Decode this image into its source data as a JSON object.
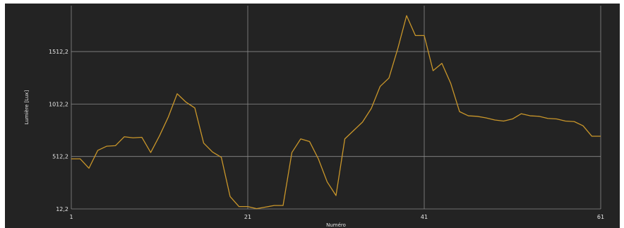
{
  "chart_data": {
    "type": "line",
    "title": "",
    "xlabel": "Numéro",
    "ylabel": "Lumière [Lux]",
    "x": [
      1,
      2,
      3,
      4,
      5,
      6,
      7,
      8,
      9,
      10,
      11,
      12,
      13,
      14,
      15,
      16,
      17,
      18,
      19,
      20,
      21,
      22,
      23,
      24,
      25,
      26,
      27,
      28,
      29,
      30,
      31,
      32,
      33,
      34,
      35,
      36,
      37,
      38,
      39,
      40,
      41,
      42,
      43,
      44,
      45,
      46,
      47,
      48,
      49,
      50,
      51,
      52,
      53,
      54,
      55,
      56,
      57,
      58,
      59,
      60,
      61
    ],
    "series": [
      {
        "values": [
          490,
          490,
          400,
          570,
          610,
          615,
          700,
          690,
          695,
          550,
          710,
          890,
          1110,
          1030,
          975,
          640,
          555,
          505,
          130,
          35,
          35,
          15,
          30,
          45,
          45,
          550,
          680,
          655,
          490,
          270,
          140,
          680,
          760,
          840,
          970,
          1180,
          1260,
          1540,
          1855,
          1665,
          1665,
          1330,
          1400,
          1210,
          940,
          900,
          895,
          880,
          860,
          850,
          870,
          920,
          900,
          895,
          875,
          870,
          850,
          845,
          805,
          705,
          705
        ]
      }
    ],
    "xticks": [
      1,
      21,
      41,
      61
    ],
    "xtick_labels": [
      "1",
      "21",
      "41",
      "61"
    ],
    "yticks": [
      12.2,
      512.2,
      1012.2,
      1512.2
    ],
    "ytick_labels": [
      "12,2",
      "512,2",
      "1012,2",
      "1512,2"
    ],
    "xlim": [
      1,
      61
    ],
    "ylim": [
      12.2,
      1950
    ],
    "grid": true,
    "colors": {
      "background": "#232323",
      "grid": "#8a8a8a",
      "line": "#c9962a",
      "text": "#e6e6e6"
    }
  }
}
